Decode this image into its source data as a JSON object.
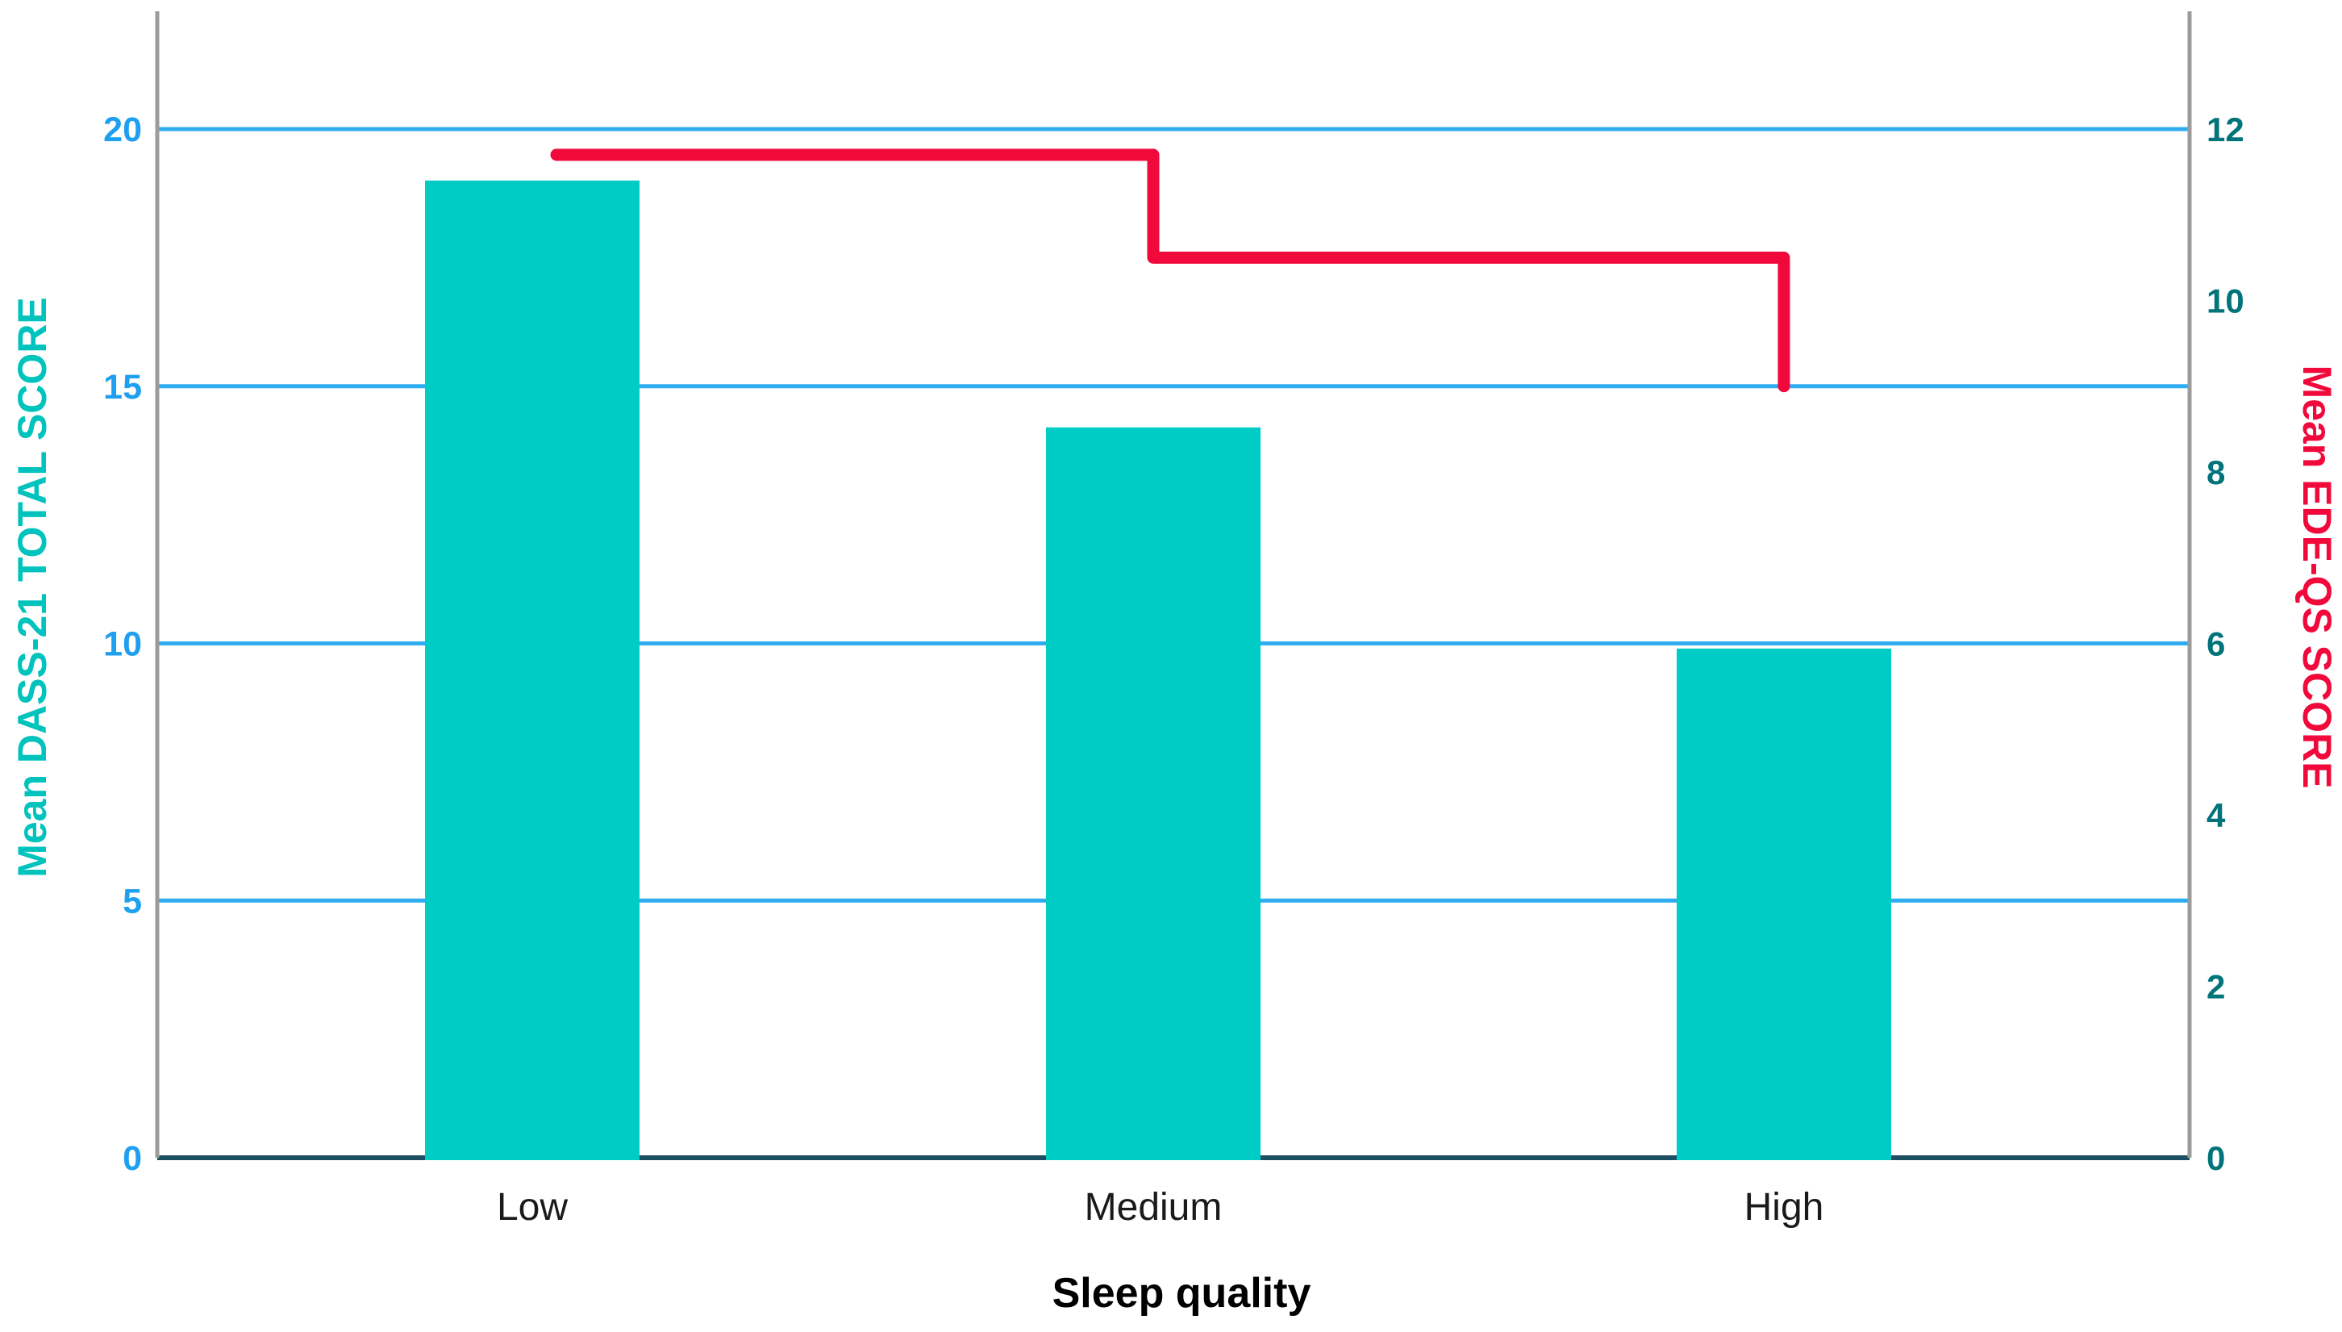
{
  "page": {
    "background": "#ffffff"
  },
  "chart_data": {
    "type": "bar",
    "subtype": "dual-axis-bar-with-step-line",
    "title": "",
    "categories": [
      "Low",
      "Medium",
      "High"
    ],
    "series": [
      {
        "name": "Mean DASS-21 TOTAL SCORE",
        "render": "bar",
        "axis": "left",
        "values": [
          19.0,
          14.2,
          9.9
        ],
        "color": "#00ccc6"
      },
      {
        "name": "Mean EDE-QS SCORE",
        "render": "step-line",
        "axis": "right",
        "values": [
          11.7,
          10.5,
          9.0
        ],
        "color": "#f2093c"
      }
    ],
    "xlabel": "Sleep quality",
    "xlabel_color": "#000000",
    "category_label_color": "#1a1a1a",
    "left_axis": {
      "label": "Mean DASS-21 TOTAL SCORE",
      "label_color": "#00c3bd",
      "min": 0,
      "max": 20,
      "ticks": [
        0,
        5,
        10,
        15,
        20
      ],
      "tick_color": "#1e9ff0"
    },
    "right_axis": {
      "label": "Mean EDE-QS SCORE",
      "label_color": "#f2093c",
      "min": 0,
      "max": 12,
      "ticks": [
        0,
        2,
        4,
        6,
        8,
        10,
        12
      ],
      "tick_color": "#00747a"
    },
    "grid": {
      "show": true,
      "color": "#2fadf0",
      "at_left_ticks": [
        5,
        10,
        15,
        20
      ]
    },
    "baseline_color": "#1d4f63",
    "frame_color": "#9b9b9b",
    "legend_position": "none"
  }
}
